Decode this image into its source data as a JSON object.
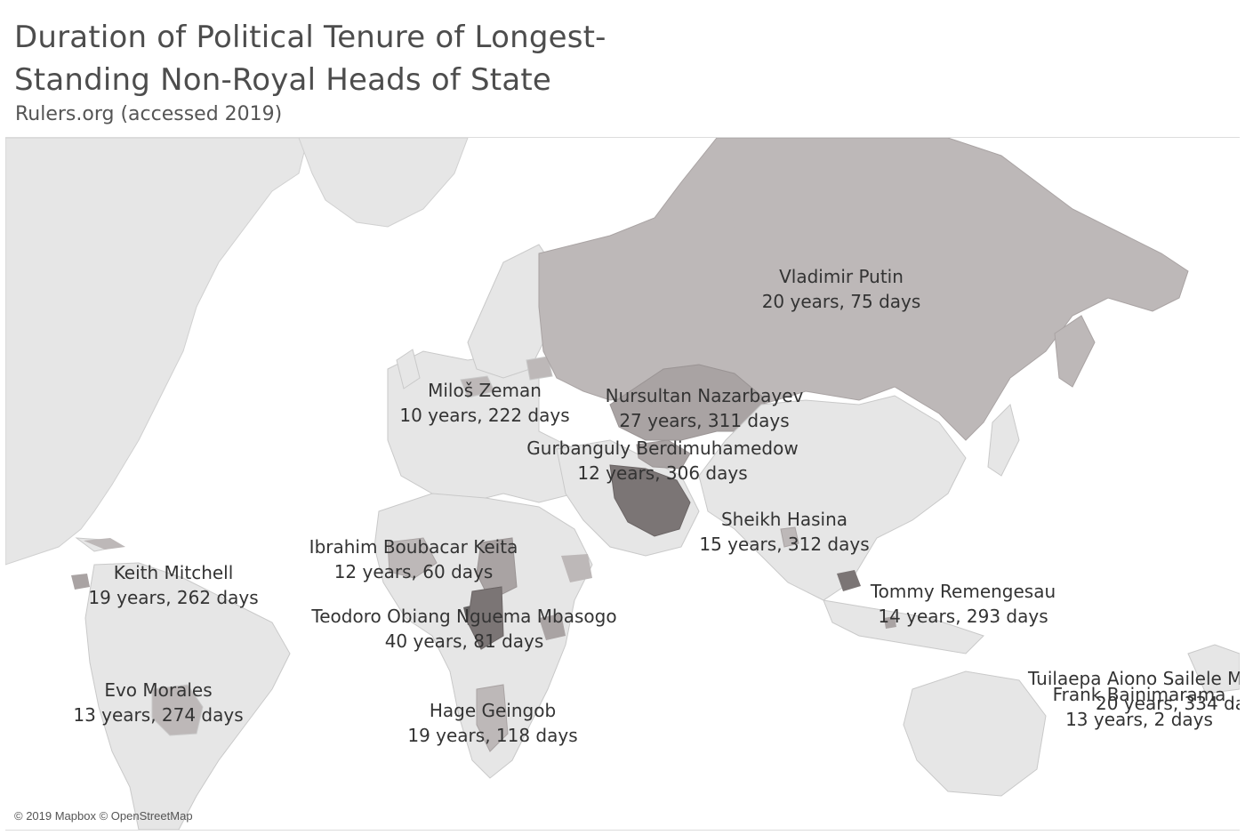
{
  "header": {
    "title": "Duration of Political Tenure of Longest-Standing Non-Royal Heads of State",
    "subtitle": "Rulers.org (accessed 2019)"
  },
  "map": {
    "attribution": "© 2019 Mapbox © OpenStreetMap",
    "colors": {
      "land": "#e6e6e6",
      "border": "#c9c9c9",
      "highlight_light": "#c7c2c2",
      "highlight_mid": "#a9a3a3",
      "highlight_dark": "#7b7575",
      "highlight_darkest": "#626060",
      "water": "#ffffff"
    },
    "rulers": [
      {
        "name": "Vladimir Putin",
        "tenure": "20 years, 75 days"
      },
      {
        "name": "Miloš Zeman",
        "tenure": "10 years, 222 days"
      },
      {
        "name": "Nursultan Nazarbayev",
        "tenure": "27 years, 311 days"
      },
      {
        "name": "Gurbanguly Berdimuhamedow",
        "tenure": "12 years, 306 days"
      },
      {
        "name": "Sheikh Hasina",
        "tenure": "15 years, 312 days"
      },
      {
        "name": "Ibrahim Boubacar Keita",
        "tenure": "12 years, 60 days"
      },
      {
        "name": "Keith Mitchell",
        "tenure": "19 years, 262 days"
      },
      {
        "name": "Teodoro Obiang Nguema Mbasogo",
        "tenure": "40 years, 81 days"
      },
      {
        "name": "Tommy Remengesau",
        "tenure": "14 years, 293 days"
      },
      {
        "name": "Evo Morales",
        "tenure": "13 years, 274 days"
      },
      {
        "name": "Hage Geingob",
        "tenure": "19 years, 118 days"
      },
      {
        "name": "Tuilaepa Aiono Sailele M",
        "tenure": "20 years, 334 da"
      },
      {
        "name": "Frank Bainimarama",
        "tenure": "13 years, 2 days"
      }
    ]
  }
}
